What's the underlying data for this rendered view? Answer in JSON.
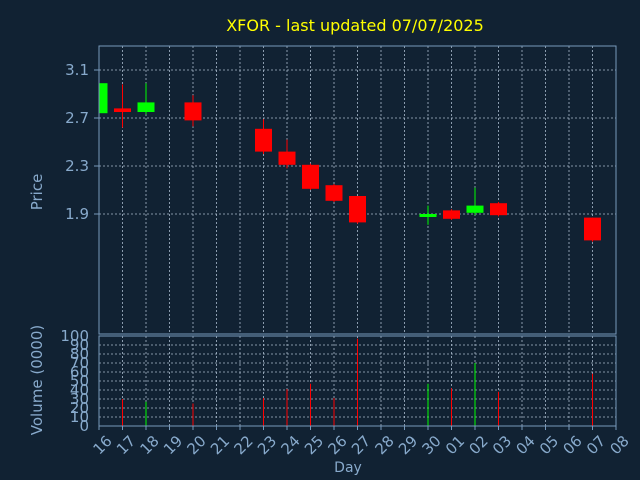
{
  "colors": {
    "background": "#112233",
    "title": "#ffff00",
    "axis_text": "#88aacc",
    "frame": "#7799bb",
    "grid": "#aabbcc",
    "up": "#00ff00",
    "down": "#ff0000"
  },
  "chart_data": [
    {
      "type": "candlestick",
      "title": "XFOR - last updated 07/07/2025",
      "ylabel": "Price",
      "ylim": [
        0.9,
        3.3
      ],
      "y_ticks": [
        "1.9",
        "2.3",
        "2.7",
        "3.1"
      ],
      "grid": true,
      "series": [
        {
          "x": "16",
          "open": 2.74,
          "high": 3.0,
          "low": 2.73,
          "close": 2.99
        },
        {
          "x": "17",
          "open": 2.78,
          "high": 2.98,
          "low": 2.62,
          "close": 2.75
        },
        {
          "x": "18",
          "open": 2.75,
          "high": 2.99,
          "low": 2.73,
          "close": 2.83
        },
        {
          "x": "20",
          "open": 2.83,
          "high": 2.89,
          "low": 2.63,
          "close": 2.68
        },
        {
          "x": "23",
          "open": 2.61,
          "high": 2.69,
          "low": 2.4,
          "close": 2.42
        },
        {
          "x": "24",
          "open": 2.42,
          "high": 2.52,
          "low": 2.28,
          "close": 2.31
        },
        {
          "x": "25",
          "open": 2.31,
          "high": 2.32,
          "low": 2.1,
          "close": 2.11
        },
        {
          "x": "26",
          "open": 2.14,
          "high": 2.15,
          "low": 2.0,
          "close": 2.01
        },
        {
          "x": "27",
          "open": 2.05,
          "high": 2.05,
          "low": 1.82,
          "close": 1.83
        },
        {
          "x": "30",
          "open": 1.88,
          "high": 1.97,
          "low": 1.81,
          "close": 1.9
        },
        {
          "x": "01",
          "open": 1.93,
          "high": 1.94,
          "low": 1.85,
          "close": 1.86
        },
        {
          "x": "02",
          "open": 1.91,
          "high": 2.12,
          "low": 1.89,
          "close": 1.97
        },
        {
          "x": "03",
          "open": 1.99,
          "high": 2.0,
          "low": 1.88,
          "close": 1.89
        },
        {
          "x": "07",
          "open": 1.87,
          "high": 1.87,
          "low": 1.67,
          "close": 1.68
        }
      ]
    },
    {
      "type": "bar",
      "ylabel": "Volume (0000)",
      "xlabel": "Day",
      "ylim": [
        0,
        100
      ],
      "y_ticks": [
        "0",
        "10",
        "20",
        "30",
        "40",
        "50",
        "60",
        "70",
        "80",
        "90",
        "100"
      ],
      "grid": true,
      "categories": [
        "16",
        "17",
        "18",
        "19",
        "20",
        "21",
        "22",
        "23",
        "24",
        "25",
        "26",
        "27",
        "28",
        "29",
        "30",
        "01",
        "02",
        "03",
        "04",
        "05",
        "06",
        "07",
        "08"
      ],
      "values": [
        0,
        30,
        27,
        0,
        25,
        0,
        0,
        31,
        41,
        47,
        31,
        97,
        0,
        0,
        47,
        42,
        70,
        38,
        0,
        0,
        0,
        58,
        0
      ],
      "directions": [
        "",
        "down",
        "up",
        "",
        "down",
        "",
        "",
        "down",
        "down",
        "down",
        "down",
        "down",
        "",
        "",
        "up",
        "down",
        "up",
        "down",
        "",
        "",
        "",
        "down",
        ""
      ]
    }
  ]
}
